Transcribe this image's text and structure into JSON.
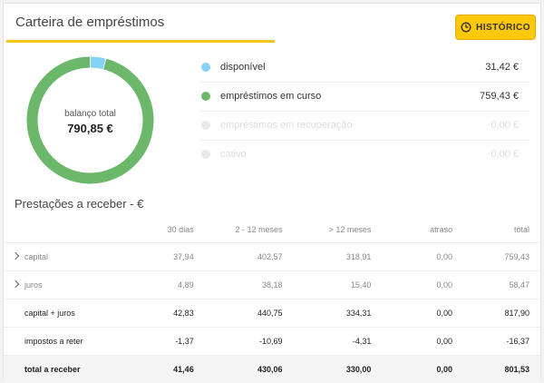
{
  "header": {
    "title": "Carteira de empréstimos",
    "history_button": "HISTÓRICO",
    "history_icon": "clock-icon"
  },
  "donut": {
    "label": "balanço total",
    "total": "790,85 €",
    "values": [
      31.42,
      759.43,
      0,
      0
    ],
    "colors": [
      "#86d4f5",
      "#6cb86a",
      "#e8e8e8",
      "#e8e8e8"
    ]
  },
  "legend": [
    {
      "label": "disponível",
      "value": "31,42 €",
      "color": "#86d4f5"
    },
    {
      "label": "empréstimos em curso",
      "value": "759,43 €",
      "color": "#6cb86a"
    },
    {
      "label": "empréstimos em recuperação",
      "value": "0,00 €",
      "color": "#e8e8e8"
    },
    {
      "label": "cativo",
      "value": "0,00 €",
      "color": "#e8e8e8"
    }
  ],
  "installments": {
    "title": "Prestações a receber - €",
    "columns": [
      "",
      "30 dias",
      "2 - 12 meses",
      "> 12 meses",
      "atraso",
      "total"
    ],
    "rows": [
      {
        "label": "capital",
        "cells": [
          "37,94",
          "402,57",
          "318,91",
          "0,00",
          "759,43"
        ]
      },
      {
        "label": "juros",
        "cells": [
          "4,89",
          "38,18",
          "15,40",
          "0,00",
          "58,47"
        ]
      },
      {
        "label": "capital + juros",
        "cells": [
          "42,83",
          "440,75",
          "334,31",
          "0,00",
          "817,90"
        ]
      },
      {
        "label": "impostos a reter",
        "cells": [
          "-1,37",
          "-10,69",
          "-4,31",
          "0,00",
          "-16,37"
        ]
      },
      {
        "label": "total a receber",
        "cells": [
          "41,46",
          "430,06",
          "330,00",
          "0,00",
          "801,53"
        ]
      }
    ]
  }
}
